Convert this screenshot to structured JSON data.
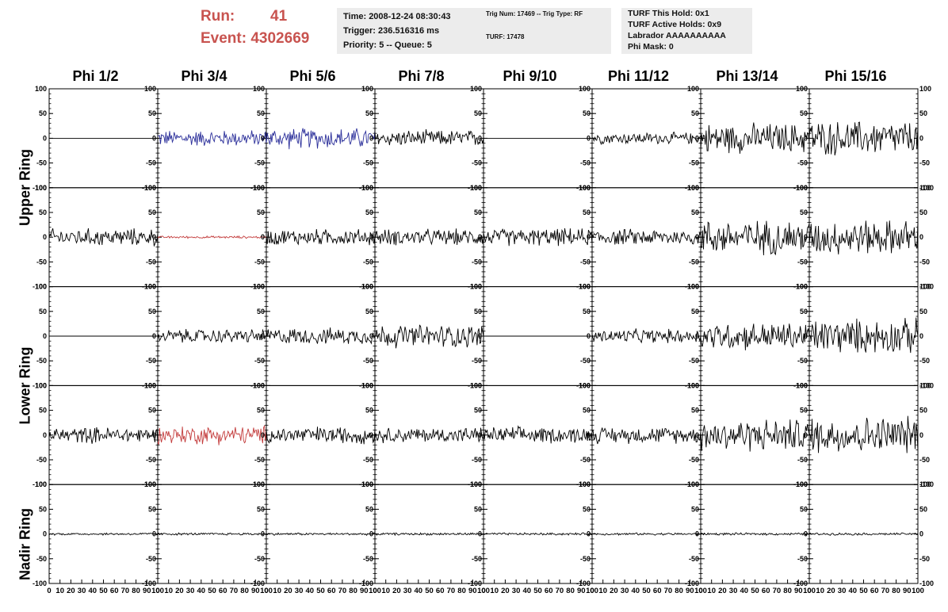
{
  "header": {
    "run_label": "Run:",
    "run_value": "41",
    "event_label": "Event:",
    "event_value": "4302669",
    "time_text": "Time: 2008-12-24 08:30:43",
    "trigger_text": "Trigger: 236.516316 ms",
    "priority_text": "Priority: 5 -- Queue: 5",
    "trig_num_text": "Trig Num: 17469 -- Trig Type: RF",
    "turf_text": "TURF: 17478",
    "turf_hold_text": "TURF This Hold: 0x1",
    "turf_active_text": "TURF Active Holds: 0x9",
    "labrador_text": "Labrador AAAAAAAAAA",
    "phi_mask_text": "Phi Mask: 0"
  },
  "colors": {
    "run_text": "#c8534f",
    "box_bg": "#ececec",
    "blue_trace": "#2b2f9a",
    "red_trace": "#c33b3b",
    "black_trace": "#000000"
  },
  "chart_data": {
    "type": "line",
    "columns": [
      "Phi 1/2",
      "Phi 3/4",
      "Phi 5/6",
      "Phi 7/8",
      "Phi 9/10",
      "Phi 11/12",
      "Phi 13/14",
      "Phi 15/16"
    ],
    "rows": [
      {
        "label": "Upper Ring",
        "panels": [
          {
            "amp": 0,
            "color": "black"
          },
          {
            "amp": 14,
            "color": "blue"
          },
          {
            "amp": 18,
            "color": "blue"
          },
          {
            "amp": 14,
            "color": "black"
          },
          {
            "amp": 0,
            "color": "black"
          },
          {
            "amp": 10,
            "color": "black"
          },
          {
            "amp": 26,
            "color": "black"
          },
          {
            "amp": 30,
            "color": "black"
          }
        ]
      },
      {
        "label": "",
        "panels": [
          {
            "amp": 15,
            "color": "black"
          },
          {
            "amp": 2,
            "color": "red"
          },
          {
            "amp": 14,
            "color": "black"
          },
          {
            "amp": 14,
            "color": "black"
          },
          {
            "amp": 15,
            "color": "black"
          },
          {
            "amp": 14,
            "color": "black"
          },
          {
            "amp": 30,
            "color": "black"
          },
          {
            "amp": 30,
            "color": "black"
          }
        ]
      },
      {
        "label": "Lower Ring",
        "panels": [
          {
            "amp": 0,
            "color": "black"
          },
          {
            "amp": 12,
            "color": "black"
          },
          {
            "amp": 14,
            "color": "black"
          },
          {
            "amp": 20,
            "color": "black"
          },
          {
            "amp": 0,
            "color": "black"
          },
          {
            "amp": 12,
            "color": "black"
          },
          {
            "amp": 24,
            "color": "black"
          },
          {
            "amp": 30,
            "color": "black"
          }
        ]
      },
      {
        "label": "",
        "panels": [
          {
            "amp": 14,
            "color": "black"
          },
          {
            "amp": 16,
            "color": "red"
          },
          {
            "amp": 15,
            "color": "black"
          },
          {
            "amp": 13,
            "color": "black"
          },
          {
            "amp": 14,
            "color": "black"
          },
          {
            "amp": 14,
            "color": "black"
          },
          {
            "amp": 28,
            "color": "black"
          },
          {
            "amp": 32,
            "color": "black"
          }
        ]
      },
      {
        "label": "Nadir Ring",
        "panels": [
          {
            "amp": 2,
            "color": "black"
          },
          {
            "amp": 2,
            "color": "black"
          },
          {
            "amp": 2,
            "color": "black"
          },
          {
            "amp": 2,
            "color": "black"
          },
          {
            "amp": 2,
            "color": "black"
          },
          {
            "amp": 2,
            "color": "black"
          },
          {
            "amp": 2,
            "color": "black"
          },
          {
            "amp": 2,
            "color": "black"
          }
        ]
      }
    ],
    "ylim": [
      -100,
      100
    ],
    "xlim": [
      0,
      100
    ],
    "y_ticks": [
      -100,
      -50,
      0,
      50,
      100
    ],
    "y_tick_labels": [
      "-100",
      "-50",
      "0",
      "50",
      "100"
    ],
    "x_ticks": [
      0,
      10,
      20,
      30,
      40,
      50,
      60,
      70,
      80,
      90,
      100
    ],
    "x_tick_labels": [
      "0",
      "10",
      "20",
      "30",
      "40",
      "50",
      "60",
      "70",
      "80",
      "90",
      "100"
    ],
    "samples": 120
  }
}
